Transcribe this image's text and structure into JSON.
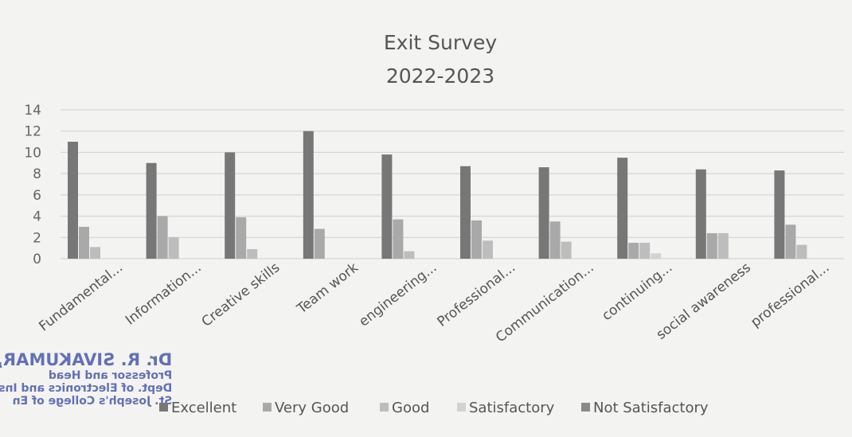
{
  "chart_data": {
    "type": "bar",
    "title": "Exit Survey",
    "subtitle": "2022-2023",
    "xlabel": "",
    "ylabel": "",
    "ylim": [
      0,
      14
    ],
    "yticks": [
      0,
      2,
      4,
      6,
      8,
      10,
      12,
      14
    ],
    "grid": true,
    "legend": "bottom",
    "categories": [
      "Fundamental...",
      "Information...",
      "Creative skills",
      "Team work",
      "engineering...",
      "Professional...",
      "Communication...",
      "continuing...",
      "social awareness",
      "professional..."
    ],
    "series": [
      {
        "name": "Excellent",
        "color": "#777777",
        "values": [
          11,
          9,
          10,
          12,
          9.8,
          8.7,
          8.6,
          9.5,
          8.4,
          8.3
        ]
      },
      {
        "name": "Very Good",
        "color": "#a9a9a9",
        "values": [
          3,
          4,
          3.9,
          2.8,
          3.7,
          3.6,
          3.5,
          1.5,
          2.4,
          3.2
        ]
      },
      {
        "name": "Good",
        "color": "#bdbdbd",
        "values": [
          1.1,
          2,
          0.9,
          0,
          0.7,
          1.7,
          1.6,
          1.5,
          2.4,
          1.3
        ]
      },
      {
        "name": "Satisfactory",
        "color": "#d2d2d2",
        "values": [
          0,
          0,
          0,
          0,
          0,
          0,
          0,
          0.5,
          0,
          0
        ]
      },
      {
        "name": "Not Satisfactory",
        "color": "#8a8a8a",
        "values": [
          0,
          0,
          0,
          0,
          0,
          0,
          0,
          0,
          0,
          0
        ]
      }
    ]
  },
  "stamp": {
    "lines": [
      "Dr. R. SIVAKUMAR, M",
      "Professor and Head",
      "Dept. of Electronics and Instrum",
      "St. Joseph's College of En"
    ]
  }
}
